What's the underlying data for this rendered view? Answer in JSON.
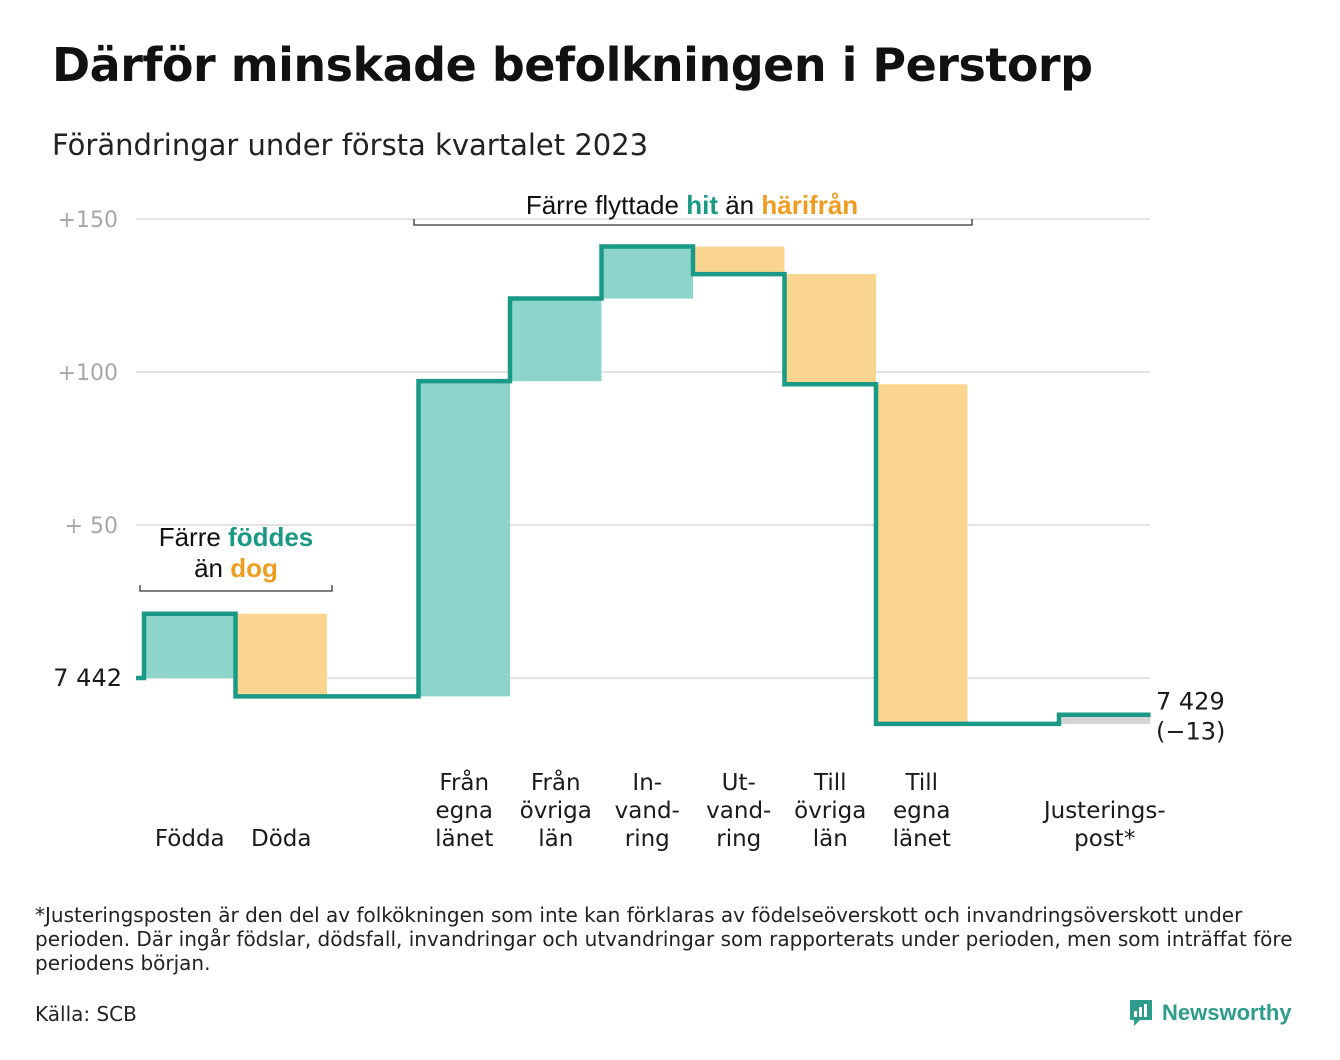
{
  "title": "Därför minskade befolkningen i Perstorp",
  "subtitle": "Förändringar under första kvartalet 2023",
  "footnote": "*Justeringsposten är den del av folkökningen som inte kan förklaras av födelseöverskott och invandringsöverskott under perioden. Där ingår födslar, dödsfall, invandringar och utvandringar som rapporterats under perioden, men som inträffat före periodens början.",
  "source": "Källa: SCB",
  "brand": "Newsworthy",
  "colors": {
    "increase_fill": "#8dd5cb",
    "decrease_fill": "#fad590",
    "adjust_fill": "#d4d4d4",
    "line": "#1a9986",
    "teal_text": "#1a9986",
    "orange_text": "#f09c21",
    "grid": "#e3e3e3",
    "tick_text": "#a7a7a7"
  },
  "chart_data": {
    "type": "waterfall",
    "start_value": 7442,
    "start_label": "7 442",
    "end_label_value": "7 429",
    "end_label_change": "(−13)",
    "yticks": [
      {
        "value": 150,
        "label": "+150"
      },
      {
        "value": 100,
        "label": "+100"
      },
      {
        "value": 50,
        "label": "+ 50"
      }
    ],
    "ylim": [
      -20,
      155
    ],
    "grid": true,
    "steps": [
      {
        "label": [
          "Födda"
        ],
        "change": 21
      },
      {
        "label": [
          "Döda"
        ],
        "change": -27
      },
      {
        "label": [],
        "change": 0
      },
      {
        "label": [
          "Från",
          "egna",
          "länet"
        ],
        "change": 103
      },
      {
        "label": [
          "Från",
          "övriga",
          "län"
        ],
        "change": 27
      },
      {
        "label": [
          "In-",
          "vand-",
          "ring"
        ],
        "change": 17
      },
      {
        "label": [
          "Ut-",
          "vand-",
          "ring"
        ],
        "change": -9
      },
      {
        "label": [
          "Till",
          "övriga",
          "län"
        ],
        "change": -36
      },
      {
        "label": [
          "Till",
          "egna",
          "länet"
        ],
        "change": -111
      },
      {
        "label": [],
        "change": 0
      },
      {
        "label": [
          "Justerings-",
          "post*"
        ],
        "change": 3
      }
    ],
    "annotations": [
      {
        "parts": [
          [
            "Färre ",
            "plain"
          ],
          [
            "föddes",
            "teal"
          ]
        ],
        "parts2": [
          [
            "än ",
            "plain"
          ],
          [
            "dog",
            "orange"
          ]
        ]
      },
      {
        "parts": [
          [
            "Färre flyttade ",
            "plain"
          ],
          [
            "hit",
            "teal"
          ],
          [
            " än ",
            "plain"
          ],
          [
            "härifrån",
            "orange"
          ]
        ]
      }
    ]
  }
}
